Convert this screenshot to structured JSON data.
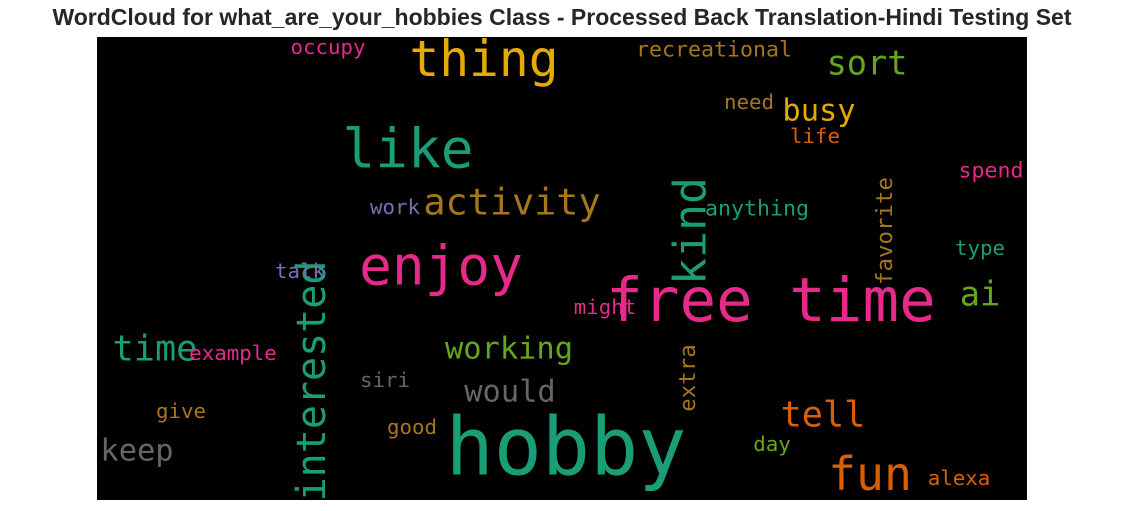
{
  "chart_data": {
    "type": "wordcloud",
    "title": "WordCloud for what_are_your_hobbies Class - Processed Back Translation-Hindi Testing Set",
    "background": "#000000",
    "words": [
      {
        "text": "hobby",
        "weight": 1.0,
        "color": "#1b9e77",
        "orientation": "horizontal"
      },
      {
        "text": "free time",
        "weight": 0.76,
        "color": "#e7298a",
        "orientation": "horizontal"
      },
      {
        "text": "enjoy",
        "weight": 0.68,
        "color": "#e7298a",
        "orientation": "horizontal"
      },
      {
        "text": "like",
        "weight": 0.68,
        "color": "#1b9e77",
        "orientation": "horizontal"
      },
      {
        "text": "thing",
        "weight": 0.62,
        "color": "#e6ab02",
        "orientation": "horizontal"
      },
      {
        "text": "fun",
        "weight": 0.58,
        "color": "#d95f02",
        "orientation": "horizontal"
      },
      {
        "text": "kind",
        "weight": 0.56,
        "color": "#1b9e77",
        "orientation": "vertical"
      },
      {
        "text": "interested",
        "weight": 0.5,
        "color": "#1b9e77",
        "orientation": "vertical"
      },
      {
        "text": "activity",
        "weight": 0.46,
        "color": "#a6761d",
        "orientation": "horizontal"
      },
      {
        "text": "time",
        "weight": 0.44,
        "color": "#1b9e77",
        "orientation": "horizontal"
      },
      {
        "text": "tell",
        "weight": 0.44,
        "color": "#d95f02",
        "orientation": "horizontal"
      },
      {
        "text": "sort",
        "weight": 0.42,
        "color": "#66a61e",
        "orientation": "horizontal"
      },
      {
        "text": "ai",
        "weight": 0.42,
        "color": "#66a61e",
        "orientation": "horizontal"
      },
      {
        "text": "keep",
        "weight": 0.38,
        "color": "#666666",
        "orientation": "horizontal"
      },
      {
        "text": "busy",
        "weight": 0.38,
        "color": "#e6ab02",
        "orientation": "horizontal"
      },
      {
        "text": "working",
        "weight": 0.38,
        "color": "#66a61e",
        "orientation": "horizontal"
      },
      {
        "text": "would",
        "weight": 0.38,
        "color": "#666666",
        "orientation": "horizontal"
      },
      {
        "text": "favorite",
        "weight": 0.28,
        "color": "#a6761d",
        "orientation": "vertical"
      },
      {
        "text": "extra",
        "weight": 0.28,
        "color": "#a6761d",
        "orientation": "vertical"
      },
      {
        "text": "recreational",
        "weight": 0.27,
        "color": "#a6761d",
        "orientation": "horizontal"
      },
      {
        "text": "anything",
        "weight": 0.27,
        "color": "#1b9e77",
        "orientation": "horizontal"
      },
      {
        "text": "spend",
        "weight": 0.27,
        "color": "#e7298a",
        "orientation": "horizontal"
      },
      {
        "text": "occupy",
        "weight": 0.26,
        "color": "#e7298a",
        "orientation": "horizontal"
      },
      {
        "text": "need",
        "weight": 0.26,
        "color": "#a6761d",
        "orientation": "horizontal"
      },
      {
        "text": "life",
        "weight": 0.26,
        "color": "#d95f02",
        "orientation": "horizontal"
      },
      {
        "text": "work",
        "weight": 0.26,
        "color": "#7570b3",
        "orientation": "horizontal"
      },
      {
        "text": "type",
        "weight": 0.26,
        "color": "#1b9e77",
        "orientation": "horizontal"
      },
      {
        "text": "talk",
        "weight": 0.26,
        "color": "#7570b3",
        "orientation": "horizontal"
      },
      {
        "text": "might",
        "weight": 0.26,
        "color": "#e7298a",
        "orientation": "horizontal"
      },
      {
        "text": "example",
        "weight": 0.26,
        "color": "#e7298a",
        "orientation": "horizontal"
      },
      {
        "text": "siri",
        "weight": 0.26,
        "color": "#666666",
        "orientation": "horizontal"
      },
      {
        "text": "give",
        "weight": 0.26,
        "color": "#a6761d",
        "orientation": "horizontal"
      },
      {
        "text": "good",
        "weight": 0.26,
        "color": "#a6761d",
        "orientation": "horizontal"
      },
      {
        "text": "day",
        "weight": 0.26,
        "color": "#66a61e",
        "orientation": "horizontal"
      },
      {
        "text": "alexa",
        "weight": 0.26,
        "color": "#d95f02",
        "orientation": "horizontal"
      }
    ]
  }
}
